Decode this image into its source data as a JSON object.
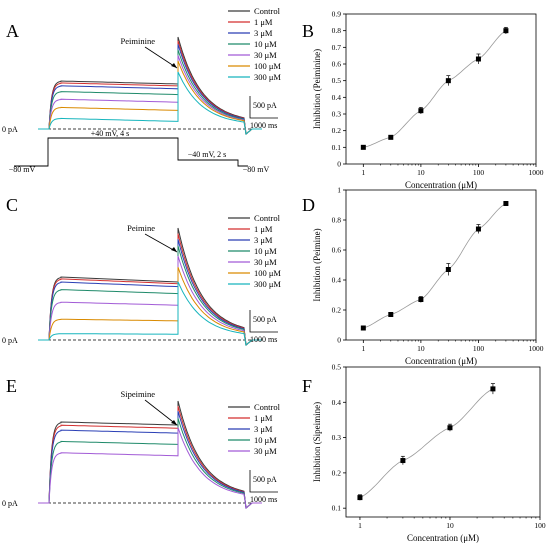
{
  "figure": {
    "panel_letters": [
      "A",
      "B",
      "C",
      "D",
      "E",
      "F"
    ],
    "scale_bar_current": "500 pA",
    "scale_bar_time": "1000 ms",
    "zero_current_label": "0 pA",
    "protocol": {
      "holding_label_left": "−80 mV",
      "step_label": "+40 mV, 4 s",
      "tail_label": "−40 mV, 2 s",
      "holding_label_right": "−80 mV"
    }
  },
  "colors": {
    "Control": "#3a3a3a",
    "1 μM": "#d32f2f",
    "3 μM": "#2a3fb5",
    "10 μM": "#1f8a6a",
    "30 μM": "#a25bd6",
    "100 μM": "#d98a00",
    "300 μM": "#17b5bd"
  },
  "traces": [
    {
      "panel": "A",
      "drug_label": "Peiminine",
      "legend": [
        "Control",
        "1 μM",
        "3 μM",
        "10 μM",
        "30 μM",
        "100 μM",
        "300 μM"
      ],
      "steady_fraction": [
        1.0,
        0.96,
        0.9,
        0.78,
        0.62,
        0.45,
        0.22
      ],
      "tail_fraction": [
        1.0,
        0.96,
        0.92,
        0.86,
        0.8,
        0.74,
        0.62
      ]
    },
    {
      "panel": "C",
      "drug_label": "Peimine",
      "legend": [
        "Control",
        "1 μM",
        "3 μM",
        "10 μM",
        "30 μM",
        "100 μM",
        "300 μM"
      ],
      "steady_fraction": [
        1.0,
        0.97,
        0.92,
        0.8,
        0.6,
        0.33,
        0.1
      ],
      "tail_fraction": [
        1.0,
        0.95,
        0.9,
        0.84,
        0.75,
        0.65,
        0.52
      ]
    },
    {
      "panel": "E",
      "drug_label": "Sipeimine",
      "legend": [
        "Control",
        "1 μM",
        "3 μM",
        "10 μM",
        "30 μM"
      ],
      "steady_fraction": [
        1.0,
        0.96,
        0.9,
        0.76,
        0.62
      ],
      "tail_fraction": [
        1.0,
        0.95,
        0.9,
        0.83,
        0.74
      ]
    }
  ],
  "chart_data": [
    {
      "panel": "B",
      "type": "scatter",
      "xlabel": "Concentration (μM)",
      "ylabel": "Inhibition (Peiminine)",
      "xscale": "log",
      "xlim": [
        0.5,
        1000
      ],
      "ylim": [
        0,
        0.9
      ],
      "xticks": [
        1,
        10,
        100,
        1000
      ],
      "yticks": [
        0.0,
        0.1,
        0.2,
        0.3,
        0.4,
        0.5,
        0.6,
        0.7,
        0.8,
        0.9
      ],
      "series": [
        {
          "x": [
            1,
            3,
            10,
            30,
            100,
            300
          ],
          "y": [
            0.1,
            0.16,
            0.32,
            0.5,
            0.63,
            0.8
          ],
          "err": [
            0.01,
            0.01,
            0.02,
            0.03,
            0.03,
            0.02
          ],
          "fit": "sigmoid"
        }
      ]
    },
    {
      "panel": "D",
      "type": "scatter",
      "xlabel": "Concentration (μM)",
      "ylabel": "Inhibition (Peimine)",
      "xscale": "log",
      "xlim": [
        0.5,
        1000
      ],
      "ylim": [
        0,
        1.0
      ],
      "xticks": [
        1,
        10,
        100,
        1000
      ],
      "yticks": [
        0.0,
        0.2,
        0.4,
        0.6,
        0.8,
        1.0
      ],
      "series": [
        {
          "x": [
            1,
            3,
            10,
            30,
            100,
            300
          ],
          "y": [
            0.08,
            0.17,
            0.27,
            0.47,
            0.74,
            0.91
          ],
          "err": [
            0.01,
            0.01,
            0.02,
            0.04,
            0.03,
            0.01
          ],
          "fit": "sigmoid"
        }
      ]
    },
    {
      "panel": "F",
      "type": "scatter",
      "xlabel": "Concentration (μM)",
      "ylabel": "Inhibition (Sipeimine)",
      "xscale": "log",
      "xlim": [
        0.7,
        100
      ],
      "ylim": [
        0.075,
        0.5
      ],
      "xticks": [
        1,
        10,
        100
      ],
      "yticks": [
        0.1,
        0.2,
        0.3,
        0.4,
        0.5
      ],
      "series": [
        {
          "x": [
            1,
            3,
            10,
            30
          ],
          "y": [
            0.13,
            0.235,
            0.328,
            0.438
          ],
          "err": [
            0.008,
            0.012,
            0.01,
            0.015
          ],
          "fit": "sigmoid"
        }
      ]
    }
  ]
}
